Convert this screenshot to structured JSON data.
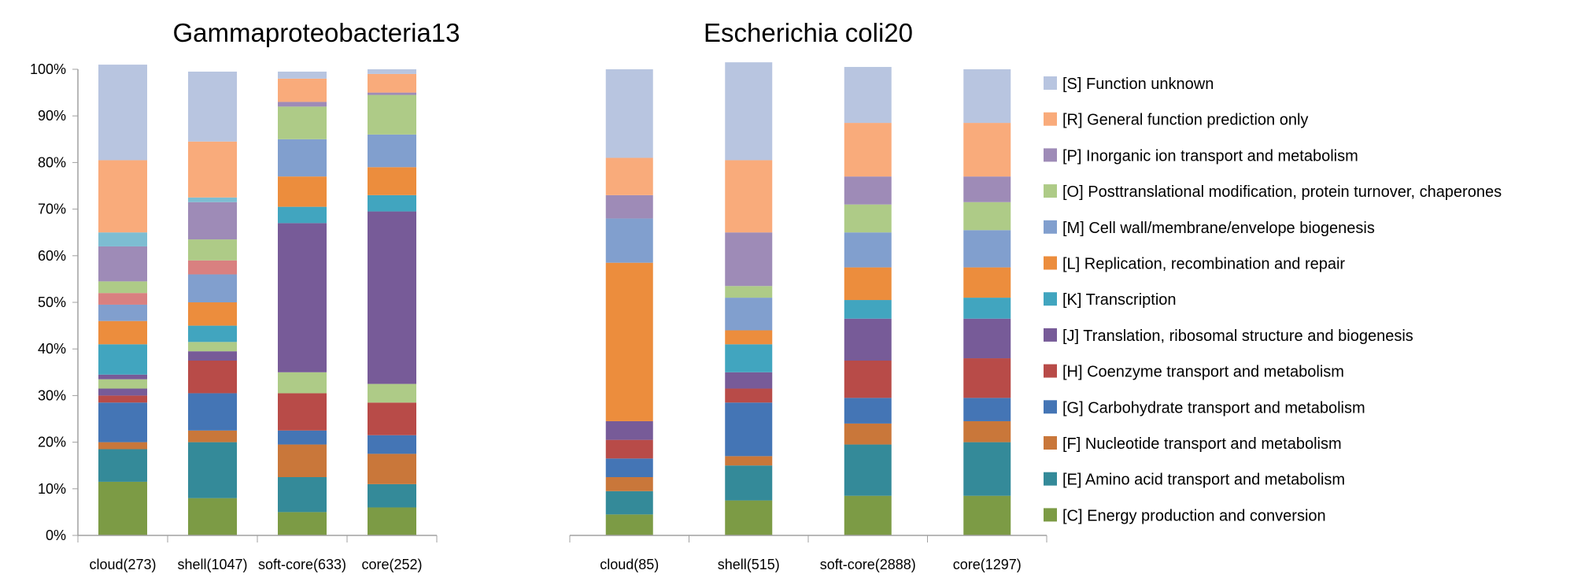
{
  "chart_data": [
    {
      "type": "bar",
      "stacked": true,
      "title": "Gammaproteobacteria13",
      "categories": [
        "cloud(273)",
        "shell(1047)",
        "soft-core(633)",
        "core(252)"
      ],
      "yticks": [
        "0%",
        "10%",
        "20%",
        "30%",
        "40%",
        "50%",
        "60%",
        "70%",
        "80%",
        "90%",
        "100%"
      ],
      "ylim": [
        0,
        100
      ],
      "series": [
        {
          "name": "[C] Energy production and conversion",
          "values": [
            11.5,
            8,
            5,
            6
          ]
        },
        {
          "name": "[E] Amino acid transport and metabolism",
          "values": [
            7,
            12,
            7.5,
            5
          ]
        },
        {
          "name": "[F] Nucleotide transport and metabolism",
          "values": [
            1.5,
            2.5,
            7,
            6.5
          ]
        },
        {
          "name": "[G] Carbohydrate transport and metabolism",
          "values": [
            8.5,
            8,
            3,
            4
          ]
        },
        {
          "name": "[H] Coenzyme transport and metabolism",
          "values": [
            1.5,
            7,
            8,
            7
          ]
        },
        {
          "name": "[J] Translation, ribosomal structure and biogenesis",
          "values": [
            1.5,
            2,
            0,
            0
          ]
        },
        {
          "name": "[O] Posttranslational modification, protein turnover, chaperones",
          "values": [
            2,
            2,
            4.5,
            4
          ]
        },
        {
          "name": "[J] Translation, ribosomal structure and biogenesis",
          "values": [
            1,
            0,
            32,
            37
          ]
        },
        {
          "name": "[K] Transcription",
          "values": [
            6.5,
            3.5,
            3.5,
            3.5
          ]
        },
        {
          "name": "[L] Replication, recombination and repair",
          "values": [
            5,
            5,
            6.5,
            6
          ]
        },
        {
          "name": "[M] Cell wall/membrane/envelope biogenesis",
          "values": [
            3.5,
            6,
            8,
            7
          ]
        },
        {
          "name": "",
          "values": [
            2.5,
            3,
            0,
            0
          ]
        },
        {
          "name": "[O] Posttranslational modification, protein turnover, chaperones",
          "values": [
            2.5,
            4.5,
            7,
            8.5
          ]
        },
        {
          "name": "[P] Inorganic ion transport and metabolism",
          "values": [
            7.5,
            8,
            1,
            0.5
          ]
        },
        {
          "name": "",
          "values": [
            3,
            1,
            0,
            0
          ]
        },
        {
          "name": "[R] General function prediction only",
          "values": [
            15.5,
            12,
            5,
            4
          ]
        },
        {
          "name": "[S] Function unknown",
          "values": [
            20.5,
            15,
            1.5,
            1
          ]
        }
      ]
    },
    {
      "type": "bar",
      "stacked": true,
      "title": "Escherichia coli20",
      "categories": [
        "cloud(85)",
        "shell(515)",
        "soft-core(2888)",
        "core(1297)"
      ],
      "ylim": [
        0,
        100
      ],
      "series": [
        {
          "name": "[C] Energy production and conversion",
          "values": [
            4.5,
            7.5,
            8.5,
            8.5
          ]
        },
        {
          "name": "[E] Amino acid transport and metabolism",
          "values": [
            5,
            7.5,
            11,
            11.5
          ]
        },
        {
          "name": "[F] Nucleotide transport and metabolism",
          "values": [
            3,
            2,
            4.5,
            4.5
          ]
        },
        {
          "name": "[G] Carbohydrate transport and metabolism",
          "values": [
            4,
            11.5,
            5.5,
            5
          ]
        },
        {
          "name": "[H] Coenzyme transport and metabolism",
          "values": [
            4,
            3,
            8,
            8.5
          ]
        },
        {
          "name": "[J] Translation, ribosomal structure and biogenesis",
          "values": [
            4,
            3.5,
            9,
            8.5
          ]
        },
        {
          "name": "[K] Transcription",
          "values": [
            0,
            6,
            4,
            4.5
          ]
        },
        {
          "name": "[L] Replication, recombination and repair",
          "values": [
            34,
            3,
            7,
            6.5
          ]
        },
        {
          "name": "[M] Cell wall/membrane/envelope biogenesis",
          "values": [
            9.5,
            7,
            7.5,
            8
          ]
        },
        {
          "name": "[O] Posttranslational modification, protein turnover, chaperones",
          "values": [
            0,
            2.5,
            6,
            6
          ]
        },
        {
          "name": "[P] Inorganic ion transport and metabolism",
          "values": [
            5,
            11.5,
            6,
            5.5
          ]
        },
        {
          "name": "[R] General function prediction only",
          "values": [
            8,
            15.5,
            11.5,
            11.5
          ]
        },
        {
          "name": "[S] Function unknown",
          "values": [
            19,
            21,
            12,
            11.5
          ]
        }
      ]
    }
  ],
  "legend": [
    {
      "label": "[S] Function unknown",
      "color": "#b8c5e0"
    },
    {
      "label": "[R] General function prediction only",
      "color": "#f9ab7b"
    },
    {
      "label": "[P] Inorganic ion transport and metabolism",
      "color": "#9e8bb7"
    },
    {
      "label": "[O] Posttranslational modification, protein turnover, chaperones",
      "color": "#aecb87"
    },
    {
      "label": "[M] Cell wall/membrane/envelope biogenesis",
      "color": "#819fce"
    },
    {
      "label": "[L] Replication, recombination and repair",
      "color": "#ec8d3d"
    },
    {
      "label": "[K] Transcription",
      "color": "#41a5bf"
    },
    {
      "label": "[J] Translation, ribosomal structure and biogenesis",
      "color": "#775b98"
    },
    {
      "label": "[H] Coenzyme transport and metabolism",
      "color": "#b84b48"
    },
    {
      "label": "[G] Carbohydrate transport and metabolism",
      "color": "#4475b5"
    },
    {
      "label": "[F] Nucleotide transport and metabolism",
      "color": "#c9773a"
    },
    {
      "label": "[E] Amino acid transport and metabolism",
      "color": "#348a99"
    },
    {
      "label": "[C] Energy production and conversion",
      "color": "#7c9b45"
    }
  ],
  "colors": {
    "gamma_series": [
      "#7c9b45",
      "#348a99",
      "#c9773a",
      "#4475b5",
      "#b84b48",
      "#775b98",
      "#aecb87",
      "#775b98",
      "#41a5bf",
      "#ec8d3d",
      "#819fce",
      "#d98080",
      "#aecb87",
      "#9e8bb7",
      "#7dbdd2",
      "#f9ab7b",
      "#b8c5e0"
    ],
    "ecoli_series": [
      "#7c9b45",
      "#348a99",
      "#c9773a",
      "#4475b5",
      "#b84b48",
      "#775b98",
      "#41a5bf",
      "#ec8d3d",
      "#819fce",
      "#aecb87",
      "#9e8bb7",
      "#f9ab7b",
      "#b8c5e0"
    ]
  }
}
